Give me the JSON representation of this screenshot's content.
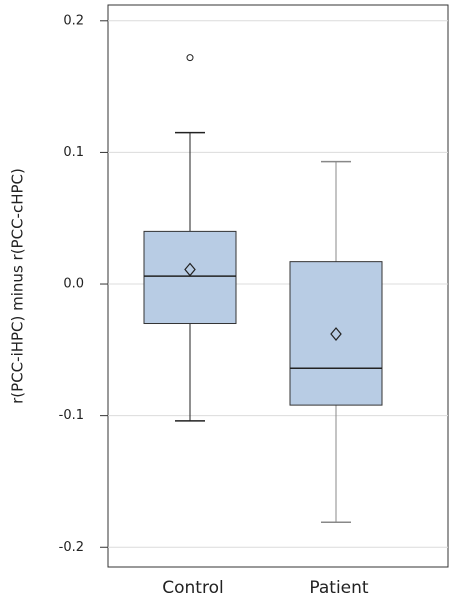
{
  "chart_data": {
    "type": "box",
    "y_label": "r(PCC-iHPC) minus r(PCC-cHPC)",
    "categories": [
      "Control",
      "Patient"
    ],
    "boxes": [
      {
        "whisker_low": -0.104,
        "q1": -0.03,
        "median": 0.006,
        "q3": 0.04,
        "whisker_high": 0.115,
        "mean": 0.011,
        "outliers": [
          0.172
        ],
        "whisker_color": "#222222"
      },
      {
        "whisker_low": -0.181,
        "q1": -0.092,
        "median": -0.064,
        "q3": 0.017,
        "whisker_high": 0.093,
        "mean": -0.038,
        "outliers": [],
        "whisker_color": "#888888"
      }
    ],
    "color": "#b8cce4",
    "ylim": [
      -0.215,
      0.212
    ],
    "yticks": [
      -0.2,
      -0.1,
      {
        "value": 0,
        "label": "0.0"
      },
      0.1,
      0.2
    ],
    "grid": true
  }
}
